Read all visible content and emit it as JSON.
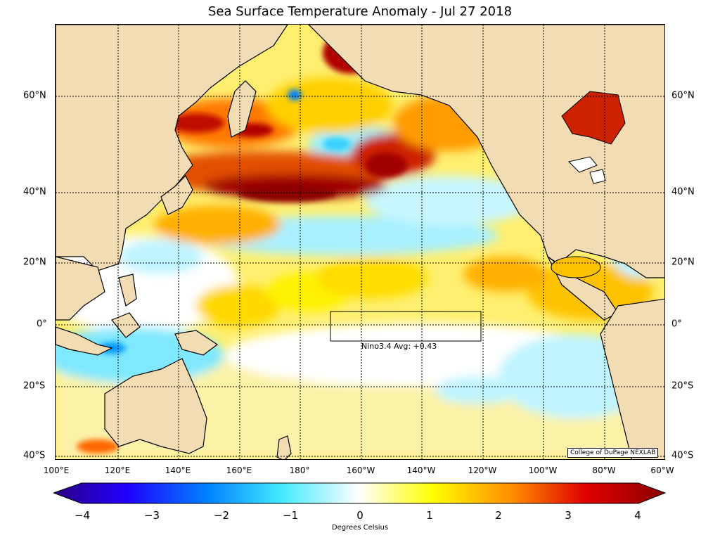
{
  "title": "Sea Surface Temperature Anomaly - Jul 27 2018",
  "lat_labels": [
    "60°N",
    "40°N",
    "20°N",
    "0°",
    "20°S",
    "40°S"
  ],
  "lon_labels": [
    "100°E",
    "120°E",
    "140°E",
    "160°E",
    "180°",
    "160°W",
    "140°W",
    "120°W",
    "100°W",
    "80°W",
    "60°W"
  ],
  "nino_label": "Nino3.4 Avg: +0.43",
  "credit": "College of DuPage NEXLAB",
  "colorbar": {
    "ticks": [
      "−4",
      "−3",
      "−2",
      "−1",
      "0",
      "1",
      "2",
      "3",
      "4"
    ],
    "label": "Degrees Celsius",
    "range": [
      -4,
      4
    ]
  },
  "colors": {
    "land": "#f2dcb4",
    "ocean_neutral": "#ffffff",
    "cold_extreme": "#2a0080",
    "warm_extreme": "#8b0000"
  }
}
